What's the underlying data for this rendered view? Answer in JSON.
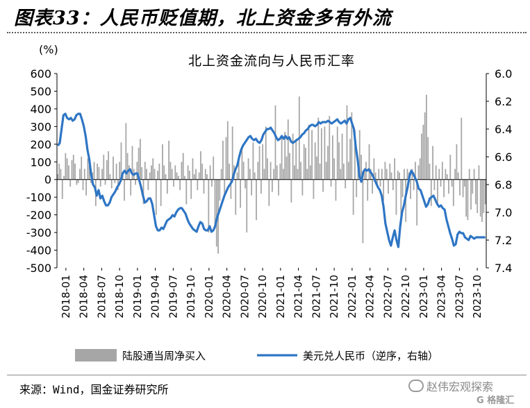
{
  "figure": {
    "title": "图表33：人民币贬值期，北上资金多有外流",
    "source": "来源：Wind，国金证券研究所",
    "watermark": "赵伟宏观探索",
    "watermark_mark": "G 格隆汇"
  },
  "chart_data": {
    "type": "bar+line",
    "title": "北上资金流向与人民币汇率",
    "left_axis_unit": "(%)",
    "left_ylim": [
      -500,
      600
    ],
    "left_ticks": [
      600,
      500,
      400,
      300,
      200,
      100,
      0,
      -100,
      -200,
      -300,
      -400,
      -500
    ],
    "right_ylim": [
      6.0,
      7.4
    ],
    "right_inverted": true,
    "right_ticks": [
      "6.0",
      "6.2",
      "6.4",
      "6.6",
      "6.8",
      "7.0",
      "7.2",
      "7.4"
    ],
    "x_ticks": [
      "2018-01",
      "2018-04",
      "2018-07",
      "2018-10",
      "2019-01",
      "2019-04",
      "2019-07",
      "2019-10",
      "2020-01",
      "2020-04",
      "2020-07",
      "2020-10",
      "2021-01",
      "2021-04",
      "2021-07",
      "2021-10",
      "2022-01",
      "2022-04",
      "2022-07",
      "2022-10",
      "2023-01",
      "2023-04",
      "2023-07",
      "2023-10"
    ],
    "colors": {
      "bars": "#a6a6a6",
      "line": "#2e75c4"
    },
    "legend": [
      "陆股通当周净买入",
      "美元兑人民币（逆序，右轴）"
    ],
    "series": [
      {
        "name": "陆股通当周净买入",
        "axis": "left",
        "kind": "bar",
        "values": [
          30,
          90,
          60,
          -110,
          20,
          150,
          120,
          80,
          -40,
          110,
          140,
          90,
          -30,
          -20,
          60,
          130,
          -60,
          60,
          -90,
          120,
          80,
          -20,
          40,
          100,
          -150,
          90,
          70,
          -40,
          60,
          140,
          -30,
          110,
          160,
          30,
          -50,
          130,
          -20,
          90,
          -60,
          100,
          210,
          40,
          -120,
          320,
          150,
          80,
          -90,
          190,
          60,
          -30,
          100,
          180,
          230,
          70,
          -140,
          100,
          60,
          -60,
          40,
          80,
          120,
          60,
          -200,
          50,
          90,
          -150,
          200,
          80,
          30,
          -80,
          220,
          100,
          60,
          -40,
          80,
          40,
          20,
          -60,
          100,
          150,
          20,
          -140,
          80,
          50,
          -110,
          120,
          30,
          60,
          -60,
          40,
          160,
          90,
          -80,
          60,
          30,
          -300,
          80,
          -40,
          130,
          -260,
          -380,
          -420,
          -120,
          60,
          220,
          -100,
          240,
          330,
          90,
          -110,
          300,
          80,
          -200,
          40,
          120,
          -160,
          180,
          100,
          -50,
          -300,
          120,
          60,
          -90,
          210,
          40,
          -230,
          100,
          190,
          -80,
          200,
          60,
          300,
          120,
          -150,
          100,
          -70,
          60,
          420,
          80,
          -90,
          90,
          240,
          60,
          270,
          130,
          340,
          150,
          -130,
          260,
          80,
          230,
          60,
          470,
          100,
          -90,
          200,
          180,
          60,
          310,
          80,
          280,
          -110,
          210,
          130,
          350,
          90,
          290,
          -70,
          300,
          100,
          190,
          360,
          -40,
          250,
          120,
          -120,
          300,
          210,
          60,
          260,
          90,
          -50,
          420,
          100,
          230,
          380,
          -200,
          280,
          -100,
          60,
          280,
          140,
          -360,
          60,
          100,
          -120,
          200,
          60,
          -80,
          120,
          40,
          -40,
          60,
          -40,
          60,
          -120,
          100,
          60,
          -80,
          90,
          40,
          -60,
          120,
          -200,
          50,
          40,
          -260,
          -100,
          60,
          -240,
          60,
          40,
          -110,
          60,
          -60,
          100,
          -260,
          80,
          120,
          260,
          310,
          380,
          480,
          240,
          90,
          -150,
          190,
          -60,
          80,
          -140,
          60,
          -40,
          100,
          -100,
          60,
          30,
          -80,
          140,
          -40,
          -150,
          60,
          200,
          40,
          -90,
          350,
          -100,
          -40,
          -210,
          -230,
          60,
          -170,
          -80,
          60,
          -140,
          -190,
          80,
          -210,
          -240,
          -190,
          -140
        ]
      },
      {
        "name": "美元兑人民币（逆序，右轴）",
        "axis": "right",
        "kind": "line",
        "values": [
          6.52,
          6.5,
          6.4,
          6.3,
          6.29,
          6.32,
          6.33,
          6.32,
          6.34,
          6.33,
          6.3,
          6.29,
          6.29,
          6.33,
          6.38,
          6.45,
          6.55,
          6.62,
          6.73,
          6.8,
          6.82,
          6.88,
          6.84,
          6.9,
          6.88,
          6.92,
          6.95,
          6.95,
          6.93,
          6.89,
          6.87,
          6.85,
          6.82,
          6.8,
          6.77,
          6.72,
          6.7,
          6.72,
          6.7,
          6.69,
          6.72,
          6.73,
          6.72,
          6.72,
          6.77,
          6.82,
          6.88,
          6.93,
          6.92,
          6.9,
          6.9,
          6.94,
          7.02,
          7.1,
          7.13,
          7.13,
          7.11,
          7.12,
          7.09,
          7.06,
          7.05,
          7.04,
          7.02,
          7.03,
          7.0,
          6.98,
          6.97,
          6.97,
          6.99,
          7.01,
          7.05,
          7.08,
          7.1,
          7.12,
          7.13,
          7.14,
          7.1,
          7.07,
          7.08,
          7.12,
          7.13,
          7.13,
          7.1,
          7.14,
          7.13,
          7.1,
          7.04,
          7.0,
          6.96,
          6.92,
          6.88,
          6.85,
          6.82,
          6.8,
          6.78,
          6.73,
          6.69,
          6.66,
          6.6,
          6.55,
          6.52,
          6.5,
          6.48,
          6.46,
          6.45,
          6.47,
          6.48,
          6.47,
          6.49,
          6.5,
          6.48,
          6.44,
          6.42,
          6.4,
          6.4,
          6.39,
          6.41,
          6.43,
          6.46,
          6.48,
          6.47,
          6.45,
          6.47,
          6.45,
          6.47,
          6.46,
          6.49,
          6.5,
          6.49,
          6.48,
          6.47,
          6.46,
          6.44,
          6.43,
          6.41,
          6.4,
          6.38,
          6.37,
          6.37,
          6.38,
          6.37,
          6.35,
          6.36,
          6.35,
          6.35,
          6.35,
          6.34,
          6.35,
          6.36,
          6.35,
          6.34,
          6.33,
          6.35,
          6.36,
          6.35,
          6.34,
          6.36,
          6.33,
          6.32,
          6.36,
          6.4,
          6.53,
          6.62,
          6.74,
          6.78,
          6.71,
          6.69,
          6.7,
          6.69,
          6.71,
          6.73,
          6.76,
          6.79,
          6.82,
          6.84,
          6.88,
          6.96,
          7.08,
          7.14,
          7.2,
          7.24,
          7.18,
          7.13,
          7.2,
          7.25,
          7.1,
          7.0,
          6.95,
          6.88,
          6.82,
          6.74,
          6.7,
          6.72,
          6.75,
          6.78,
          6.83,
          6.84,
          6.88,
          6.92,
          6.96,
          6.94,
          6.9,
          6.89,
          6.88,
          6.91,
          6.94,
          6.96,
          6.95,
          6.97,
          6.98,
          7.05,
          7.1,
          7.15,
          7.19,
          7.24,
          7.23,
          7.16,
          7.14,
          7.15,
          7.15,
          7.18,
          7.19,
          7.2,
          7.17,
          7.18,
          7.19,
          7.18,
          7.18,
          7.18,
          7.18,
          7.18,
          7.18
        ]
      }
    ]
  }
}
